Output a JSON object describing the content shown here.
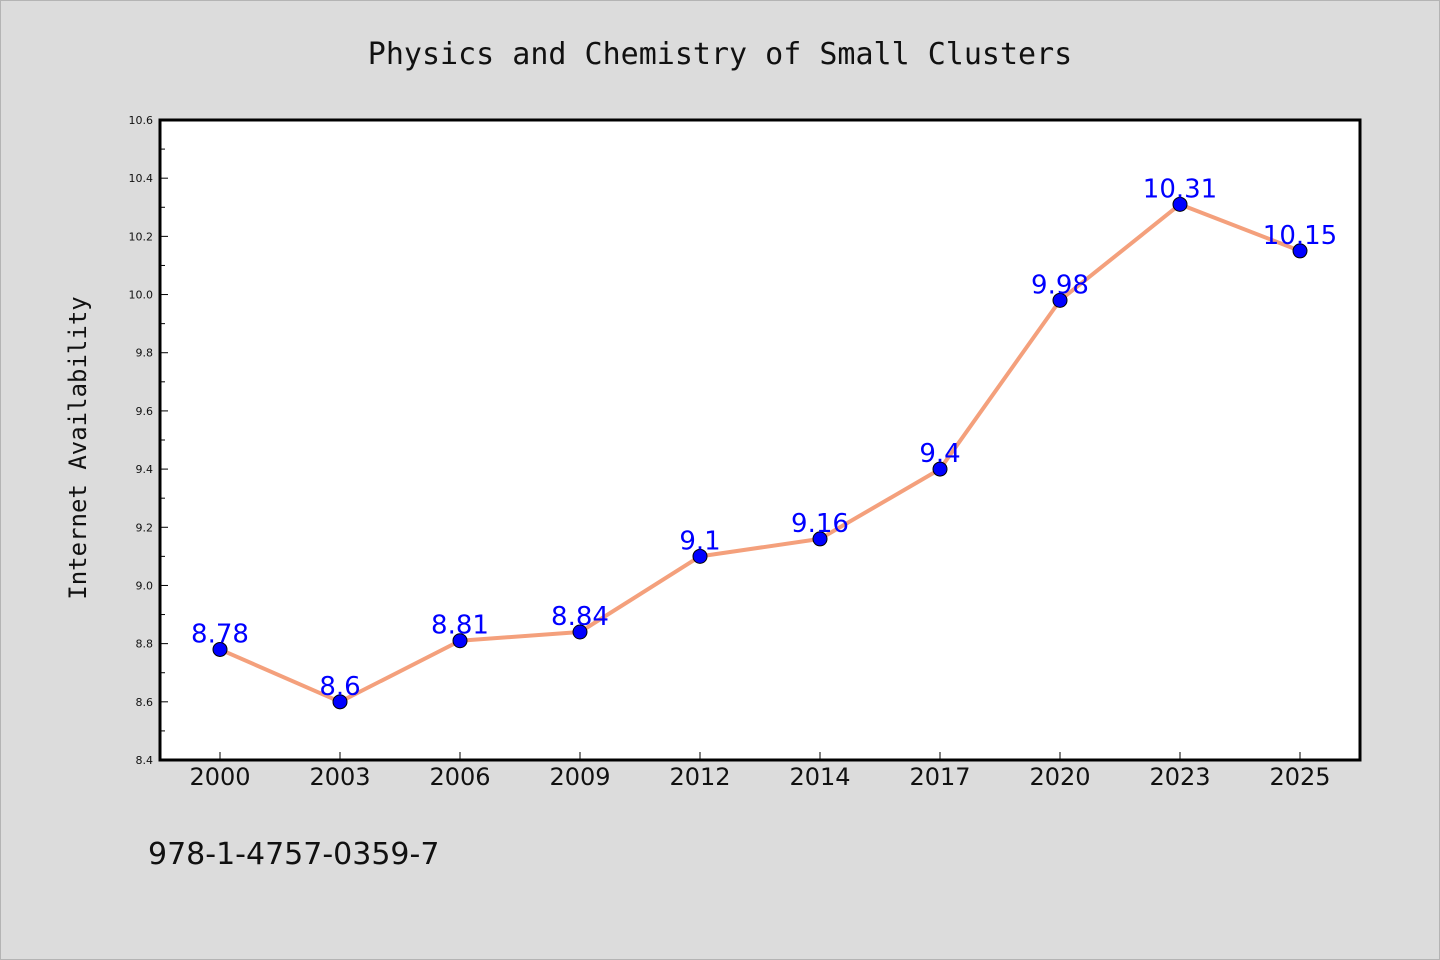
{
  "chart_data": {
    "type": "line",
    "title": "Physics and Chemistry of Small Clusters",
    "ylabel": "Internet Availability",
    "xlabel": "",
    "categories": [
      "2000",
      "2003",
      "2006",
      "2009",
      "2012",
      "2014",
      "2017",
      "2020",
      "2023",
      "2025"
    ],
    "values": [
      8.78,
      8.6,
      8.81,
      8.84,
      9.1,
      9.16,
      9.4,
      9.98,
      10.31,
      10.15
    ],
    "data_labels": [
      "8.78",
      "8.6",
      "8.81",
      "8.84",
      "9.1",
      "9.16",
      "9.4",
      "9.98",
      "10.31",
      "10.15"
    ],
    "ylim": [
      8.4,
      10.6
    ],
    "yticks": [
      "8.4",
      "8.6",
      "8.8",
      "9.0",
      "9.2",
      "9.4",
      "9.6",
      "9.8",
      "10.0",
      "10.2",
      "10.4",
      "10.6"
    ],
    "grid": false,
    "line_color": "#f4a07c",
    "marker_color": "#0000ff",
    "label_color": "#0000ff",
    "plot_background": "#ffffff",
    "page_background": "#dcdcdc"
  },
  "footer": {
    "isbn": "978-1-4757-0359-7"
  }
}
